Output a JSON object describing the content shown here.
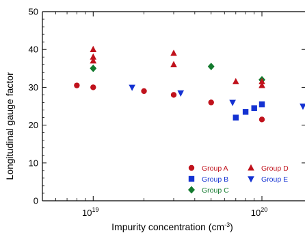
{
  "chart_data": {
    "type": "scatter",
    "xlabel": "Impurity concentration (cm",
    "xlabel_sup": "-3",
    "xlabel_end": ")",
    "ylabel": "Longitudinal gauge factor",
    "x_scale": "log",
    "xlim": [
      5e+18,
      1.8e+20
    ],
    "ylim": [
      0,
      50
    ],
    "grid": false,
    "legend_position": "lower-right",
    "y_ticks": [
      0,
      10,
      20,
      30,
      40,
      50
    ],
    "y_tick_labels": [
      "0",
      "10",
      "20",
      "30",
      "40",
      "50"
    ],
    "x_ticks": [
      {
        "value": 1e+19,
        "base": "10",
        "exp": "19"
      },
      {
        "value": 1e+20,
        "base": "10",
        "exp": "20"
      }
    ],
    "series": [
      {
        "name": "Group A",
        "marker": "circle",
        "color": "#c0121c",
        "points": [
          [
            8e+18,
            30.5
          ],
          [
            1e+19,
            30
          ],
          [
            2e+19,
            29
          ],
          [
            3e+19,
            28
          ],
          [
            5e+19,
            26
          ],
          [
            1e+20,
            21.5
          ]
        ]
      },
      {
        "name": "Group B",
        "marker": "square",
        "color": "#1432d2",
        "points": [
          [
            7e+19,
            22
          ],
          [
            8e+19,
            23.5
          ],
          [
            9e+19,
            24.5
          ],
          [
            1e+20,
            25.5
          ]
        ]
      },
      {
        "name": "Group C",
        "marker": "diamond",
        "color": "#137a2e",
        "points": [
          [
            1e+19,
            35
          ],
          [
            5e+19,
            35.5
          ],
          [
            1e+20,
            32
          ]
        ]
      },
      {
        "name": "Group D",
        "marker": "triangle-up",
        "color": "#c0121c",
        "points": [
          [
            1e+19,
            40
          ],
          [
            1e+19,
            38
          ],
          [
            1e+19,
            37
          ],
          [
            3e+19,
            39
          ],
          [
            3e+19,
            36
          ],
          [
            7e+19,
            31.5
          ],
          [
            1e+20,
            31.5
          ],
          [
            1e+20,
            30.5
          ]
        ]
      },
      {
        "name": "Group E",
        "marker": "triangle-down",
        "color": "#1432d2",
        "points": [
          [
            1.7e+19,
            30
          ],
          [
            3.3e+19,
            28.5
          ],
          [
            6.7e+19,
            26
          ],
          [
            1.75e+20,
            25
          ]
        ]
      }
    ]
  }
}
